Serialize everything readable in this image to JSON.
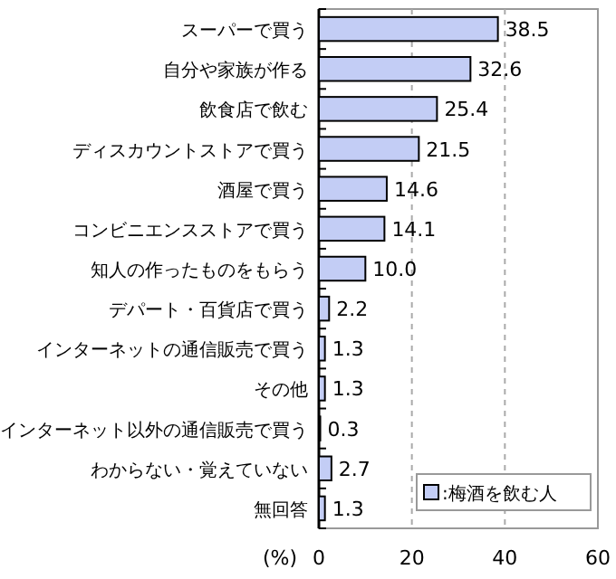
{
  "chart_data": {
    "type": "bar",
    "orientation": "horizontal",
    "categories": [
      "スーパーで買う",
      "自分や家族が作る",
      "飲食店で飲む",
      "ディスカウントストアで買う",
      "酒屋で買う",
      "コンビニエンスストアで買う",
      "知人の作ったものをもらう",
      "デパート・百貨店で買う",
      "インターネットの通信販売で買う",
      "その他",
      "インターネット以外の通信販売で買う",
      "わからない・覚えていない",
      "無回答"
    ],
    "series": [
      {
        "name": ":梅酒を飲む人",
        "color": "#c3cdf5",
        "values": [
          38.5,
          32.6,
          25.4,
          21.5,
          14.6,
          14.1,
          10.0,
          2.2,
          1.3,
          1.3,
          0.3,
          2.7,
          1.3
        ],
        "value_labels": [
          "38.5",
          "32.6",
          "25.4",
          "21.5",
          "14.6",
          "14.1",
          "10.0",
          "2.2",
          "1.3",
          "1.3",
          "0.3",
          "2.7",
          "1.3"
        ]
      }
    ],
    "xlabel": "(%)",
    "xlim": [
      0,
      60
    ],
    "xticks": [
      0,
      20,
      40,
      60
    ],
    "grid": "x",
    "legend": "bottom right"
  }
}
